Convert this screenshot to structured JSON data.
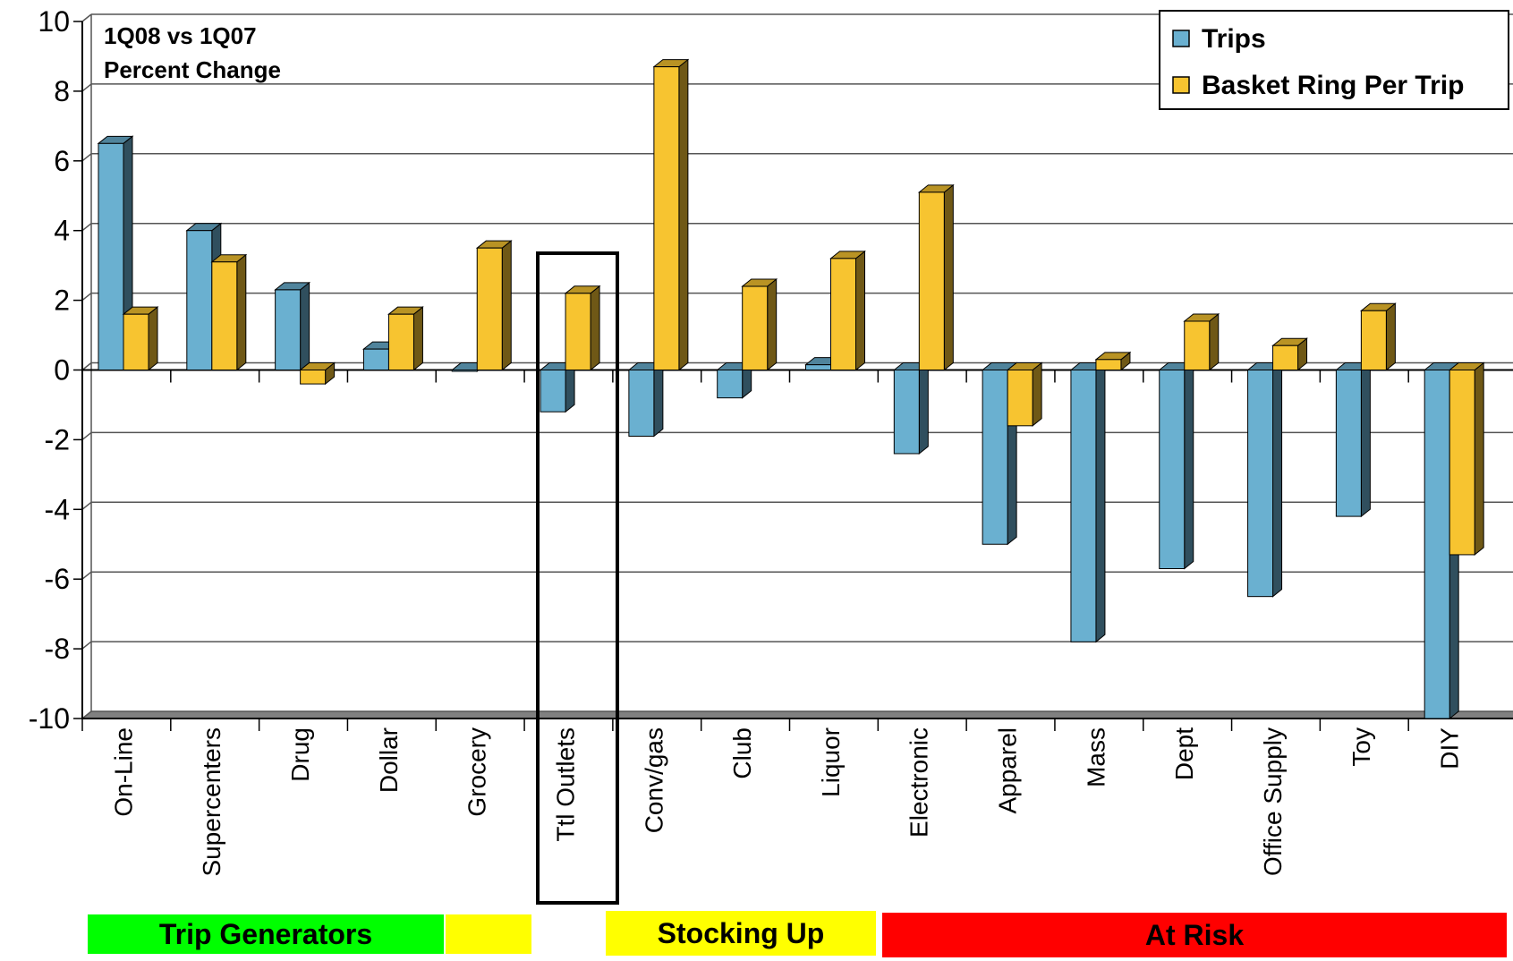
{
  "chart_data": {
    "type": "bar",
    "title": "1Q08 vs 1Q07",
    "subtitle": "Percent Change",
    "ylim": [
      -10,
      10
    ],
    "yticks": [
      10,
      8,
      6,
      4,
      2,
      0,
      -2,
      -4,
      -6,
      -8,
      -10
    ],
    "grid": true,
    "legend_position": "top-right",
    "categories": [
      "On-Line",
      "Supercenters",
      "Drug",
      "Dollar",
      "Grocery",
      "Ttl Outlets",
      "Conv/gas",
      "Club",
      "Liquor",
      "Electronic",
      "Apparel",
      "Mass",
      "Dept",
      "Office Supply",
      "Toy",
      "DIY"
    ],
    "series": [
      {
        "name": "Trips",
        "color": "#6AB0D0",
        "values": [
          6.5,
          4.0,
          2.3,
          0.6,
          0.0,
          -1.2,
          -1.9,
          -0.8,
          0.15,
          -2.4,
          -5.0,
          -7.8,
          -5.7,
          -6.5,
          -4.2,
          -10.0
        ]
      },
      {
        "name": "Basket Ring Per Trip",
        "color": "#F7C430",
        "values": [
          1.6,
          3.1,
          -0.4,
          1.6,
          3.5,
          2.2,
          8.7,
          2.4,
          3.2,
          5.1,
          -1.6,
          0.3,
          1.4,
          0.7,
          1.7,
          -5.3
        ]
      }
    ],
    "highlighted_category": "Ttl Outlets",
    "groups": [
      {
        "label": "Trip Generators",
        "color": "#00FF00"
      },
      {
        "label": "",
        "color": "#FFFF00"
      },
      {
        "label": "Stocking Up",
        "color": "#FFFF00"
      },
      {
        "label": "At Risk",
        "color": "#FF0000"
      }
    ]
  }
}
